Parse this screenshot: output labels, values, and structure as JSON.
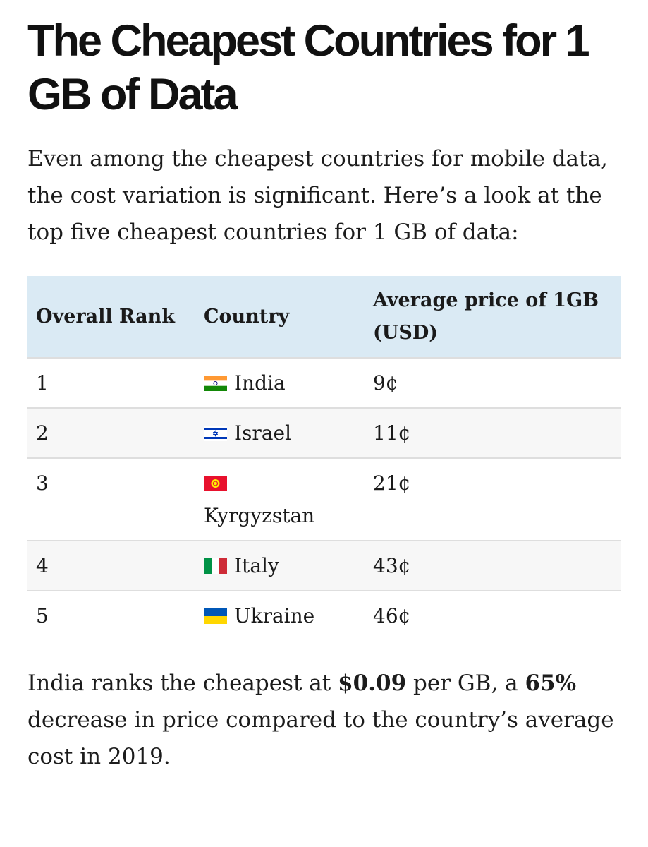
{
  "article": {
    "title": "The Cheapest Countries for 1 GB of Data",
    "intro": "Even among the cheapest countries for mobile data, the cost variation is significant. Here’s a look at the top five cheapest countries for 1 GB of data:"
  },
  "table": {
    "headers": {
      "rank": "Overall Rank",
      "country": "Country",
      "price": "Average price of 1GB (USD)"
    },
    "rows": [
      {
        "rank": "1",
        "flag": "india-flag-icon",
        "country": "India",
        "price": "9¢"
      },
      {
        "rank": "2",
        "flag": "israel-flag-icon",
        "country": "Israel",
        "price": "11¢"
      },
      {
        "rank": "3",
        "flag": "kyrgyzstan-flag-icon",
        "country": "Kyrgyzstan",
        "price": "21¢"
      },
      {
        "rank": "4",
        "flag": "italy-flag-icon",
        "country": "Italy",
        "price": "43¢"
      },
      {
        "rank": "5",
        "flag": "ukraine-flag-icon",
        "country": "Ukraine",
        "price": "46¢"
      }
    ]
  },
  "summary": {
    "part1": "India ranks the cheapest at ",
    "price": "$0.09",
    "part2": " per GB, a ",
    "percent": "65%",
    "part3": " decrease in price compared to the country’s average cost in 2019."
  },
  "colors": {
    "header_bg": "#daeaf4",
    "stripe_bg": "#f7f7f7",
    "text": "#1a1a1a"
  }
}
